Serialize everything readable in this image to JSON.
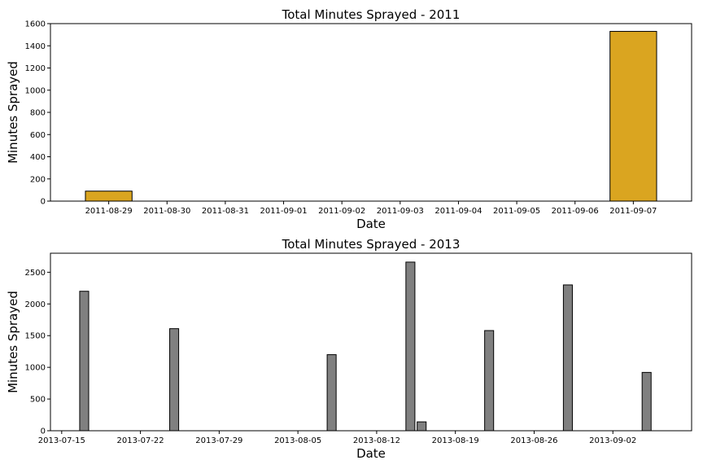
{
  "chart_data": [
    {
      "type": "bar",
      "title": "Total Minutes Sprayed - 2011",
      "xlabel": "Date",
      "ylabel": "Minutes Sprayed",
      "x_axis": "date",
      "xticks": [
        "2011-08-29",
        "2011-08-30",
        "2011-08-31",
        "2011-09-01",
        "2011-09-02",
        "2011-09-03",
        "2011-09-04",
        "2011-09-05",
        "2011-09-06",
        "2011-09-07"
      ],
      "xlim": [
        "2011-08-28",
        "2011-09-08"
      ],
      "bar_width_days": 0.8,
      "ylim": [
        0,
        1600
      ],
      "yticks": [
        0,
        200,
        400,
        600,
        800,
        1000,
        1200,
        1400,
        1600
      ],
      "bars": [
        {
          "x": "2011-08-29",
          "value": 90
        },
        {
          "x": "2011-09-07",
          "value": 1530
        }
      ],
      "bar_color": "#DAA520",
      "grid": false,
      "legend": "none"
    },
    {
      "type": "bar",
      "title": "Total Minutes Sprayed - 2013",
      "xlabel": "Date",
      "ylabel": "Minutes Sprayed",
      "x_axis": "date",
      "xticks": [
        "2013-07-15",
        "2013-07-22",
        "2013-07-29",
        "2013-08-05",
        "2013-08-12",
        "2013-08-19",
        "2013-08-26",
        "2013-09-02"
      ],
      "xlim": [
        "2013-07-14",
        "2013-09-09"
      ],
      "bar_width_days": 0.8,
      "ylim": [
        0,
        2800
      ],
      "yticks": [
        0,
        500,
        1000,
        1500,
        2000,
        2500
      ],
      "bars": [
        {
          "x": "2013-07-17",
          "value": 2200
        },
        {
          "x": "2013-07-25",
          "value": 1610
        },
        {
          "x": "2013-08-08",
          "value": 1200
        },
        {
          "x": "2013-08-15",
          "value": 2660
        },
        {
          "x": "2013-08-16",
          "value": 140
        },
        {
          "x": "2013-08-22",
          "value": 1580
        },
        {
          "x": "2013-08-29",
          "value": 2300
        },
        {
          "x": "2013-09-05",
          "value": 920
        }
      ],
      "bar_color": "#808080",
      "grid": false,
      "legend": "none"
    }
  ]
}
